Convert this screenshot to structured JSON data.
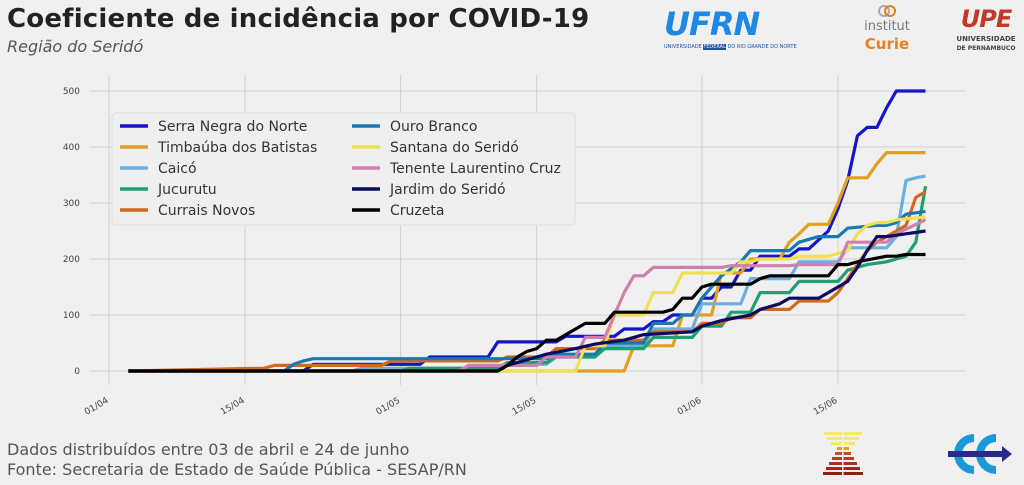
{
  "header": {
    "title": "Coeficiente de incidência por COVID-19",
    "subtitle": "Região do Seridó"
  },
  "logos": {
    "ufrn": {
      "main": "UFRN",
      "caption_pre": "UNIVERSIDADE ",
      "caption_mid": "FEDERAL",
      "caption_post": " DO RIO GRANDE DO NORTE",
      "color": "#1e88e5"
    },
    "curie": {
      "line1": "institut",
      "line2": "Curie",
      "color": "#e67e22"
    },
    "upe": {
      "main": "UPE",
      "line1": "UNIVERSIDADE",
      "line2": "DE PERNAMBUCO",
      "color": "#c0392b"
    }
  },
  "footer": {
    "line1": "Dados distribuídos entre 03 de abril e 24 de junho",
    "line2": "Fonte: Secretaria de Estado de Saúde Pública - SESAP/RN"
  },
  "chart_data": {
    "type": "line",
    "title": "Coeficiente de incidência por COVID-19",
    "subtitle": "Região do Seridó",
    "xlabel": "",
    "ylabel": "",
    "x_unit": "days since 01/04",
    "xlim": [
      -2,
      86
    ],
    "ylim": [
      -20,
      525
    ],
    "yticks": [
      0,
      100,
      200,
      300,
      400,
      500
    ],
    "xticks": [
      {
        "day": 0,
        "label": "01/04"
      },
      {
        "day": 14,
        "label": "15/04"
      },
      {
        "day": 30,
        "label": "01/05"
      },
      {
        "day": 44,
        "label": "15/05"
      },
      {
        "day": 61,
        "label": "01/06"
      },
      {
        "day": 75,
        "label": "15/06"
      }
    ],
    "grid": true,
    "legend_position": "upper-left",
    "series": [
      {
        "name": "Serra Negra do Norte",
        "color": "#1414c8",
        "x": [
          2,
          20,
          21,
          32,
          33,
          39,
          40,
          46,
          47,
          52,
          53,
          55,
          56,
          57,
          58,
          60,
          61,
          62,
          63,
          64,
          65,
          66,
          67,
          70,
          71,
          72,
          74,
          75,
          76,
          77,
          78,
          79,
          80,
          81,
          82,
          84
        ],
        "y": [
          0,
          0,
          12,
          12,
          25,
          25,
          52,
          52,
          62,
          62,
          75,
          75,
          88,
          88,
          100,
          100,
          130,
          130,
          150,
          150,
          180,
          180,
          205,
          205,
          218,
          218,
          250,
          290,
          340,
          420,
          435,
          435,
          470,
          500,
          500,
          500
        ]
      },
      {
        "name": "Timbaúba dos Batistas",
        "color": "#e0a020",
        "x": [
          2,
          45,
          47,
          53,
          54,
          58,
          59,
          62,
          63,
          65,
          66,
          69,
          70,
          71,
          72,
          74,
          75,
          76,
          77,
          78,
          79,
          80,
          81,
          82,
          84
        ],
        "y": [
          0,
          0,
          0,
          0,
          45,
          45,
          100,
          100,
          175,
          175,
          200,
          200,
          230,
          245,
          262,
          262,
          300,
          345,
          345,
          345,
          370,
          390,
          390,
          390,
          390
        ]
      },
      {
        "name": "Caicó",
        "color": "#6ab0de",
        "x": [
          2,
          25,
          26,
          40,
          41,
          45,
          46,
          50,
          51,
          55,
          56,
          60,
          61,
          65,
          66,
          70,
          71,
          75,
          76,
          80,
          81,
          82,
          83,
          84
        ],
        "y": [
          0,
          0,
          5,
          5,
          12,
          12,
          25,
          25,
          45,
          45,
          75,
          75,
          120,
          120,
          165,
          165,
          195,
          195,
          220,
          220,
          240,
          340,
          345,
          348
        ]
      },
      {
        "name": "Jucurutu",
        "color": "#20a070",
        "x": [
          2,
          30,
          31,
          40,
          41,
          45,
          46,
          50,
          51,
          55,
          56,
          60,
          61,
          63,
          64,
          66,
          67,
          70,
          71,
          75,
          76,
          77,
          78,
          80,
          81,
          82,
          83,
          84
        ],
        "y": [
          0,
          0,
          5,
          5,
          15,
          15,
          25,
          25,
          40,
          40,
          60,
          60,
          80,
          80,
          105,
          105,
          140,
          140,
          160,
          160,
          180,
          185,
          190,
          195,
          200,
          205,
          230,
          330
        ]
      },
      {
        "name": "Currais Novos",
        "color": "#d2691e",
        "x": [
          2,
          16,
          17,
          28,
          29,
          40,
          41,
          45,
          46,
          50,
          51,
          55,
          56,
          60,
          61,
          63,
          64,
          66,
          67,
          70,
          71,
          74,
          75,
          76,
          77,
          78,
          79,
          80,
          81,
          82,
          83,
          84
        ],
        "y": [
          0,
          5,
          10,
          10,
          18,
          18,
          25,
          25,
          40,
          40,
          55,
          55,
          70,
          70,
          85,
          85,
          95,
          95,
          110,
          110,
          125,
          125,
          140,
          165,
          190,
          215,
          230,
          240,
          250,
          260,
          310,
          320
        ]
      },
      {
        "name": "Ouro Branco",
        "color": "#1878b0",
        "x": [
          2,
          18,
          19,
          20,
          21,
          45,
          46,
          50,
          51,
          55,
          56,
          58,
          59,
          60,
          61,
          62,
          63,
          65,
          66,
          70,
          71,
          73,
          74,
          75,
          76,
          79,
          80,
          81,
          82,
          84
        ],
        "y": [
          0,
          0,
          12,
          18,
          22,
          22,
          30,
          30,
          50,
          50,
          85,
          85,
          100,
          100,
          130,
          150,
          170,
          195,
          215,
          215,
          230,
          240,
          240,
          240,
          255,
          260,
          260,
          265,
          280,
          285
        ]
      },
      {
        "name": "Santana do Seridó",
        "color": "#f0e050",
        "x": [
          2,
          43,
          44,
          48,
          49,
          51,
          52,
          55,
          56,
          58,
          59,
          64,
          65,
          66,
          67,
          70,
          71,
          74,
          75,
          76,
          77,
          78,
          79,
          80,
          81,
          84
        ],
        "y": [
          0,
          0,
          0,
          0,
          45,
          45,
          100,
          100,
          140,
          140,
          175,
          175,
          195,
          195,
          200,
          200,
          205,
          205,
          210,
          215,
          245,
          260,
          265,
          265,
          270,
          275
        ]
      },
      {
        "name": "Tenente Laurentino Cruz",
        "color": "#d080b0",
        "x": [
          2,
          36,
          37,
          44,
          45,
          48,
          49,
          51,
          52,
          53,
          54,
          55,
          56,
          63,
          64,
          70,
          71,
          75,
          76,
          80,
          81,
          84
        ],
        "y": [
          0,
          0,
          10,
          10,
          25,
          25,
          60,
          60,
          100,
          140,
          170,
          170,
          185,
          185,
          188,
          188,
          190,
          190,
          230,
          230,
          245,
          270
        ]
      },
      {
        "name": "Jardim do Seridó",
        "color": "#0b0b60",
        "x": [
          2,
          40,
          41,
          42,
          44,
          45,
          48,
          50,
          53,
          55,
          60,
          61,
          63,
          66,
          67,
          69,
          70,
          73,
          74,
          76,
          77,
          78,
          79,
          80,
          82,
          84
        ],
        "y": [
          0,
          0,
          10,
          15,
          25,
          30,
          40,
          48,
          55,
          65,
          70,
          80,
          90,
          100,
          110,
          120,
          130,
          130,
          140,
          160,
          185,
          215,
          240,
          240,
          245,
          250
        ]
      },
      {
        "name": "Cruzeta",
        "color": "#000000",
        "x": [
          2,
          40,
          41,
          42,
          43,
          44,
          45,
          46,
          47,
          48,
          49,
          51,
          52,
          54,
          55,
          57,
          58,
          59,
          60,
          61,
          62,
          66,
          67,
          68,
          69,
          74,
          75,
          76,
          77,
          80,
          81,
          82,
          84
        ],
        "y": [
          0,
          0,
          10,
          25,
          35,
          40,
          55,
          55,
          65,
          75,
          85,
          85,
          105,
          105,
          105,
          105,
          110,
          130,
          130,
          150,
          155,
          155,
          165,
          170,
          170,
          170,
          190,
          190,
          195,
          205,
          205,
          208,
          208
        ]
      }
    ]
  }
}
